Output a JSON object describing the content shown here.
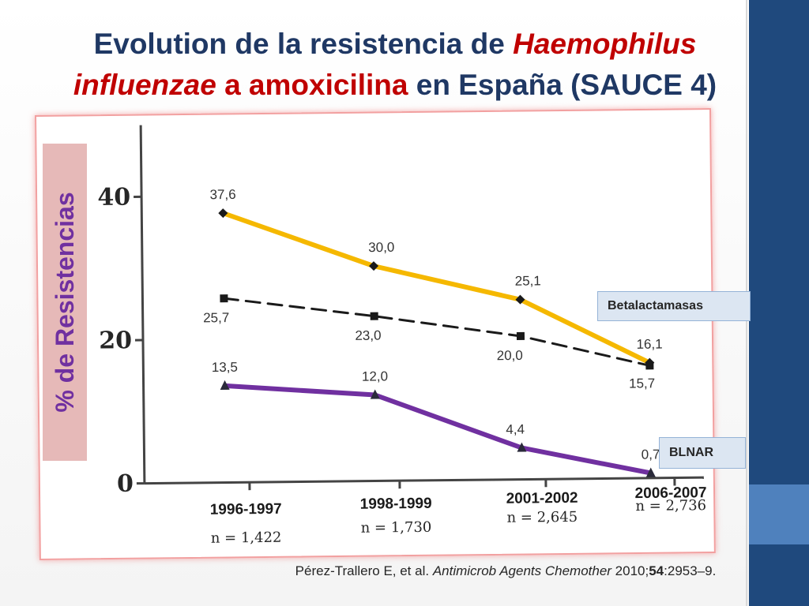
{
  "title": {
    "part1": "Evolution de la resistencia de ",
    "part2": "Haemophilus",
    "part3": "influenzae",
    "part4": " a amoxicilina",
    "part5": " en España (SAUCE 4)"
  },
  "citation": {
    "authors": "Pérez-Trallero E, et al. ",
    "journal": "Antimicrob Agents Chemother",
    "year": " 2010;",
    "volume": "54",
    "pages": ":2953–9."
  },
  "colors": {
    "accent_dark": "#1f497d",
    "accent_light": "#4f81bd",
    "amoxicillin_line": "#f5b800",
    "betalactamase_line": "#1a1a1a",
    "blnar_line": "#7030a0",
    "ylabel_fill": "#e6b9b8",
    "ylabel_text": "#7030a0"
  },
  "chart_data": {
    "type": "line",
    "categories": [
      "1996-1997",
      "1998-1999",
      "2001-2002",
      "2006-2007"
    ],
    "sample_sizes": [
      "n = 1,422",
      "n = 1,730",
      "n = 2,645",
      "n = 2,736"
    ],
    "ylabel": "% de Resistencias",
    "ylim": [
      0,
      50
    ],
    "yticks": [
      "0",
      "20",
      "40"
    ],
    "grid": false,
    "series": [
      {
        "key": "amoxicilina",
        "name": "",
        "values": [
          37.6,
          30.0,
          25.1,
          16.1
        ],
        "labels": [
          "37,6",
          "30,0",
          "25,1",
          "16,1"
        ],
        "marker": "diamond",
        "style": "solid"
      },
      {
        "key": "betalactamasas",
        "name": "Betalactamasas",
        "values": [
          25.7,
          23.0,
          20.0,
          15.7
        ],
        "labels": [
          "25,7",
          "23,0",
          "20,0",
          "15,7"
        ],
        "marker": "square",
        "style": "dashed"
      },
      {
        "key": "blnar",
        "name": "BLNAR",
        "values": [
          13.5,
          12.0,
          4.4,
          0.7
        ],
        "labels": [
          "13,5",
          "12,0",
          "4,4",
          "0,7"
        ],
        "marker": "triangle",
        "style": "solid"
      }
    ]
  }
}
